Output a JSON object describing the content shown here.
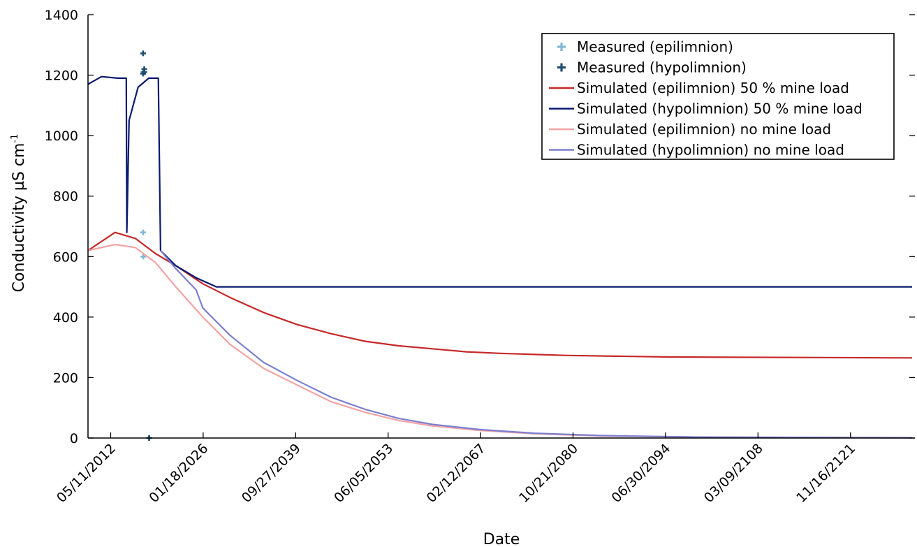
{
  "chart_data": {
    "type": "line",
    "title": "",
    "xlabel": "Date",
    "ylabel": "Conductivity µS cm",
    "ylabel_sup": "-1",
    "ylim": [
      0,
      1400
    ],
    "yticks": [
      0,
      200,
      400,
      600,
      800,
      1000,
      1200,
      1400
    ],
    "xlim": [
      "2009-01-01",
      "2131-06-01"
    ],
    "xticks": [
      {
        "date": "2012-05-11",
        "label": "05/11/2012"
      },
      {
        "date": "2026-01-18",
        "label": "01/18/2026"
      },
      {
        "date": "2039-09-27",
        "label": "09/27/2039"
      },
      {
        "date": "2053-06-05",
        "label": "06/05/2053"
      },
      {
        "date": "2067-02-12",
        "label": "02/12/2067"
      },
      {
        "date": "2080-10-21",
        "label": "10/21/2080"
      },
      {
        "date": "2094-06-30",
        "label": "06/30/2094"
      },
      {
        "date": "2108-03-09",
        "label": "03/09/2108"
      },
      {
        "date": "2121-11-16",
        "label": "11/16/2121"
      }
    ],
    "legend_position": "top-right",
    "grid": false,
    "series": [
      {
        "name": "Measured (epilimnion)",
        "kind": "marker",
        "color": "#7fb8d6",
        "points": [
          {
            "x": "2017-03-01",
            "y": 1210
          },
          {
            "x": "2017-03-01",
            "y": 680
          },
          {
            "x": "2017-03-10",
            "y": 600
          },
          {
            "x": "2018-01-20",
            "y": 0
          }
        ]
      },
      {
        "name": "Measured (hypolimnion)",
        "kind": "marker",
        "color": "#1f4e6e",
        "points": [
          {
            "x": "2017-03-01",
            "y": 1272
          },
          {
            "x": "2017-03-01",
            "y": 1205
          },
          {
            "x": "2017-05-01",
            "y": 1220
          },
          {
            "x": "2017-05-01",
            "y": 1210
          },
          {
            "x": "2018-01-20",
            "y": 0
          }
        ]
      },
      {
        "name": "Simulated (epilimnion) 50 % mine load",
        "kind": "line",
        "color": "#c62828",
        "points": [
          {
            "x": "2009-01-01",
            "y": 620
          },
          {
            "x": "2013-01-01",
            "y": 680
          },
          {
            "x": "2016-01-01",
            "y": 660
          },
          {
            "x": "2019-01-01",
            "y": 610
          },
          {
            "x": "2022-01-01",
            "y": 570
          },
          {
            "x": "2026-01-01",
            "y": 510
          },
          {
            "x": "2030-01-01",
            "y": 465
          },
          {
            "x": "2035-01-01",
            "y": 415
          },
          {
            "x": "2040-01-01",
            "y": 375
          },
          {
            "x": "2045-01-01",
            "y": 345
          },
          {
            "x": "2050-01-01",
            "y": 320
          },
          {
            "x": "2055-01-01",
            "y": 305
          },
          {
            "x": "2060-01-01",
            "y": 295
          },
          {
            "x": "2065-01-01",
            "y": 285
          },
          {
            "x": "2070-01-01",
            "y": 280
          },
          {
            "x": "2080-01-01",
            "y": 273
          },
          {
            "x": "2095-01-01",
            "y": 268
          },
          {
            "x": "2131-01-01",
            "y": 265
          }
        ]
      },
      {
        "name": "Simulated (hypolimnion) 50 % mine load",
        "kind": "line",
        "color": "#0a1a6e",
        "points": [
          {
            "x": "2009-01-01",
            "y": 1170
          },
          {
            "x": "2011-01-01",
            "y": 1195
          },
          {
            "x": "2013-06-01",
            "y": 1190
          },
          {
            "x": "2014-09-01",
            "y": 1190
          },
          {
            "x": "2014-10-01",
            "y": 680
          },
          {
            "x": "2015-02-01",
            "y": 1050
          },
          {
            "x": "2016-06-01",
            "y": 1160
          },
          {
            "x": "2018-01-01",
            "y": 1190
          },
          {
            "x": "2019-06-01",
            "y": 1190
          },
          {
            "x": "2019-10-01",
            "y": 620
          },
          {
            "x": "2022-01-01",
            "y": 570
          },
          {
            "x": "2025-01-01",
            "y": 530
          },
          {
            "x": "2028-01-01",
            "y": 500
          },
          {
            "x": "2131-01-01",
            "y": 500
          }
        ]
      },
      {
        "name": "Simulated (epilimnion) no mine load",
        "kind": "line",
        "color": "#f4a3a3",
        "points": [
          {
            "x": "2009-01-01",
            "y": 620
          },
          {
            "x": "2013-01-01",
            "y": 640
          },
          {
            "x": "2016-01-01",
            "y": 630
          },
          {
            "x": "2019-01-01",
            "y": 580
          },
          {
            "x": "2022-01-01",
            "y": 500
          },
          {
            "x": "2026-01-01",
            "y": 400
          },
          {
            "x": "2030-01-01",
            "y": 310
          },
          {
            "x": "2035-01-01",
            "y": 230
          },
          {
            "x": "2040-01-01",
            "y": 175
          },
          {
            "x": "2045-01-01",
            "y": 120
          },
          {
            "x": "2050-01-01",
            "y": 85
          },
          {
            "x": "2055-01-01",
            "y": 58
          },
          {
            "x": "2060-01-01",
            "y": 40
          },
          {
            "x": "2067-01-01",
            "y": 25
          },
          {
            "x": "2075-01-01",
            "y": 14
          },
          {
            "x": "2085-01-01",
            "y": 7
          },
          {
            "x": "2100-01-01",
            "y": 3
          },
          {
            "x": "2131-01-01",
            "y": 1
          }
        ]
      },
      {
        "name": "Simulated (hypolimnion) no mine load",
        "kind": "line",
        "color": "#7b7fd0",
        "points": [
          {
            "x": "2019-10-01",
            "y": 620
          },
          {
            "x": "2022-01-01",
            "y": 560
          },
          {
            "x": "2025-01-01",
            "y": 490
          },
          {
            "x": "2026-01-01",
            "y": 430
          },
          {
            "x": "2030-01-01",
            "y": 340
          },
          {
            "x": "2035-01-01",
            "y": 250
          },
          {
            "x": "2040-01-01",
            "y": 190
          },
          {
            "x": "2045-01-01",
            "y": 135
          },
          {
            "x": "2050-01-01",
            "y": 95
          },
          {
            "x": "2055-01-01",
            "y": 65
          },
          {
            "x": "2060-01-01",
            "y": 45
          },
          {
            "x": "2067-01-01",
            "y": 28
          },
          {
            "x": "2075-01-01",
            "y": 16
          },
          {
            "x": "2085-01-01",
            "y": 8
          },
          {
            "x": "2100-01-01",
            "y": 3
          },
          {
            "x": "2131-01-01",
            "y": 1
          }
        ]
      }
    ]
  }
}
